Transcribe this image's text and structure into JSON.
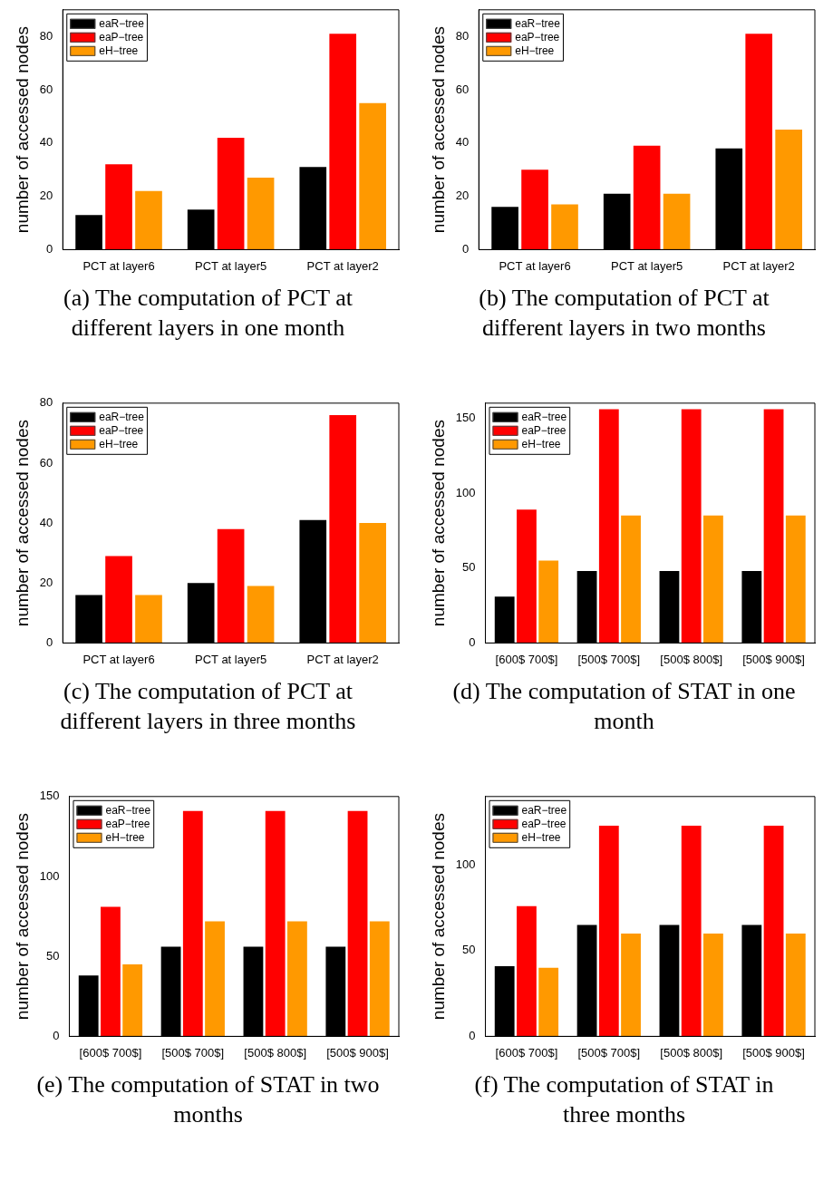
{
  "chart_data": [
    {
      "type": "bar",
      "title": "(a) The computation of PCT at different layers in one month",
      "ylabel": "number of accessed nodes",
      "categories": [
        "PCT at layer6",
        "PCT at layer5",
        "PCT at layer2"
      ],
      "ylim": [
        0,
        90
      ],
      "yticks": [
        0,
        20,
        40,
        60,
        80
      ],
      "legend": "top left",
      "series": [
        {
          "name": "eaR−tree",
          "color": "#000000",
          "values": [
            13,
            15,
            31
          ]
        },
        {
          "name": "eaP−tree",
          "color": "#ff0000",
          "values": [
            32,
            42,
            81
          ]
        },
        {
          "name": "eH−tree",
          "color": "#ff9900",
          "values": [
            22,
            27,
            55
          ]
        }
      ]
    },
    {
      "type": "bar",
      "title": "(b) The computation of PCT at different layers in two months",
      "ylabel": "number of accessed nodes",
      "categories": [
        "PCT at layer6",
        "PCT at layer5",
        "PCT at layer2"
      ],
      "ylim": [
        0,
        90
      ],
      "yticks": [
        0,
        20,
        40,
        60,
        80
      ],
      "legend": "top left",
      "series": [
        {
          "name": "eaR−tree",
          "color": "#000000",
          "values": [
            16,
            21,
            38
          ]
        },
        {
          "name": "eaP−tree",
          "color": "#ff0000",
          "values": [
            30,
            39,
            81
          ]
        },
        {
          "name": "eH−tree",
          "color": "#ff9900",
          "values": [
            17,
            21,
            45
          ]
        }
      ]
    },
    {
      "type": "bar",
      "title": "(c) The computation of PCT at different layers in three months",
      "ylabel": "number of accessed nodes",
      "categories": [
        "PCT at layer6",
        "PCT at layer5",
        "PCT at layer2"
      ],
      "ylim": [
        0,
        80
      ],
      "yticks": [
        0,
        20,
        40,
        60,
        80
      ],
      "legend": "top left",
      "series": [
        {
          "name": "eaR−tree",
          "color": "#000000",
          "values": [
            16,
            20,
            41
          ]
        },
        {
          "name": "eaP−tree",
          "color": "#ff0000",
          "values": [
            29,
            38,
            76
          ]
        },
        {
          "name": "eH−tree",
          "color": "#ff9900",
          "values": [
            16,
            19,
            40
          ]
        }
      ]
    },
    {
      "type": "bar",
      "title": "(d) The computation of STAT in one month",
      "ylabel": "number of accessed nodes",
      "categories": [
        "[600$ 700$]",
        "[500$ 700$]",
        "[500$ 800$]",
        "[500$ 900$]"
      ],
      "ylim": [
        0,
        160
      ],
      "yticks": [
        0,
        50,
        100,
        150
      ],
      "legend": "top left",
      "series": [
        {
          "name": "eaR−tree",
          "color": "#000000",
          "values": [
            31,
            48,
            48,
            48
          ]
        },
        {
          "name": "eaP−tree",
          "color": "#ff0000",
          "values": [
            89,
            156,
            156,
            156
          ]
        },
        {
          "name": "eH−tree",
          "color": "#ff9900",
          "values": [
            55,
            85,
            85,
            85
          ]
        }
      ]
    },
    {
      "type": "bar",
      "title": "(e) The computation of STAT in two months",
      "ylabel": "number of accessed nodes",
      "categories": [
        "[600$ 700$]",
        "[500$ 700$]",
        "[500$ 800$]",
        "[500$ 900$]"
      ],
      "ylim": [
        0,
        150
      ],
      "yticks": [
        0,
        50,
        100,
        150
      ],
      "legend": "top left",
      "series": [
        {
          "name": "eaR−tree",
          "color": "#000000",
          "values": [
            38,
            56,
            56,
            56
          ]
        },
        {
          "name": "eaP−tree",
          "color": "#ff0000",
          "values": [
            81,
            141,
            141,
            141
          ]
        },
        {
          "name": "eH−tree",
          "color": "#ff9900",
          "values": [
            45,
            72,
            72,
            72
          ]
        }
      ]
    },
    {
      "type": "bar",
      "title": "(f) The computation of STAT in three months",
      "ylabel": "number of accessed nodes",
      "categories": [
        "[600$ 700$]",
        "[500$ 700$]",
        "[500$ 800$]",
        "[500$ 900$]"
      ],
      "ylim": [
        0,
        140
      ],
      "yticks": [
        0,
        50,
        100
      ],
      "legend": "top left",
      "series": [
        {
          "name": "eaR−tree",
          "color": "#000000",
          "values": [
            41,
            65,
            65,
            65
          ]
        },
        {
          "name": "eaP−tree",
          "color": "#ff0000",
          "values": [
            76,
            123,
            123,
            123
          ]
        },
        {
          "name": "eH−tree",
          "color": "#ff9900",
          "values": [
            40,
            60,
            60,
            60
          ]
        }
      ]
    }
  ]
}
